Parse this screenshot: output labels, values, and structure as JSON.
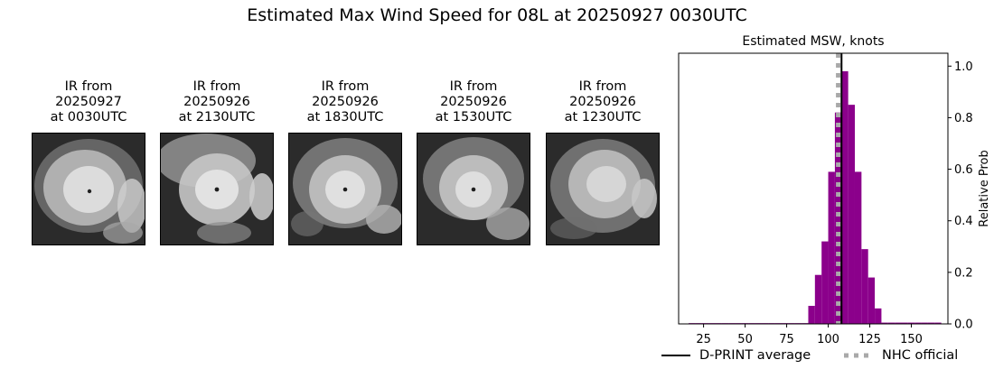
{
  "title": "Estimated Max Wind Speed for 08L at 20250927 0030UTC",
  "ir_panels": [
    {
      "line1": "IR from",
      "line2": "20250927",
      "line3": "at 0030UTC"
    },
    {
      "line1": "IR from",
      "line2": "20250926",
      "line3": "at 2130UTC"
    },
    {
      "line1": "IR from",
      "line2": "20250926",
      "line3": "at 1830UTC"
    },
    {
      "line1": "IR from",
      "line2": "20250926",
      "line3": "at 1530UTC"
    },
    {
      "line1": "IR from",
      "line2": "20250926",
      "line3": "at 1230UTC"
    }
  ],
  "legend": {
    "dprint_label": "D-PRINT average",
    "nhc_label": "NHC official"
  },
  "colors": {
    "bars": "#8b008b",
    "dprint_line": "#000000",
    "nhc_line": "#a9a9a9"
  },
  "chart_data": {
    "type": "bar",
    "title": "Estimated MSW, knots",
    "xlabel": "",
    "ylabel": "Relative Prob",
    "xlim": [
      10,
      172
    ],
    "ylim": [
      0,
      1.05
    ],
    "x_ticks": [
      25,
      50,
      75,
      100,
      125,
      150
    ],
    "y_ticks": [
      0.0,
      0.2,
      0.4,
      0.6,
      0.8,
      1.0
    ],
    "y_axis_side": "right",
    "bin_width": 4,
    "bins": [
      {
        "x": 18,
        "value": 0.003
      },
      {
        "x": 22,
        "value": 0.003
      },
      {
        "x": 26,
        "value": 0.003
      },
      {
        "x": 30,
        "value": 0.003
      },
      {
        "x": 34,
        "value": 0.003
      },
      {
        "x": 38,
        "value": 0.003
      },
      {
        "x": 42,
        "value": 0.003
      },
      {
        "x": 46,
        "value": 0.003
      },
      {
        "x": 50,
        "value": 0.003
      },
      {
        "x": 54,
        "value": 0.003
      },
      {
        "x": 58,
        "value": 0.003
      },
      {
        "x": 62,
        "value": 0.003
      },
      {
        "x": 66,
        "value": 0.003
      },
      {
        "x": 70,
        "value": 0.003
      },
      {
        "x": 74,
        "value": 0.003
      },
      {
        "x": 78,
        "value": 0.003
      },
      {
        "x": 82,
        "value": 0.003
      },
      {
        "x": 86,
        "value": 0.003
      },
      {
        "x": 90,
        "value": 0.07
      },
      {
        "x": 94,
        "value": 0.19
      },
      {
        "x": 98,
        "value": 0.32
      },
      {
        "x": 102,
        "value": 0.59
      },
      {
        "x": 106,
        "value": 0.82
      },
      {
        "x": 110,
        "value": 0.98
      },
      {
        "x": 114,
        "value": 0.85
      },
      {
        "x": 118,
        "value": 0.59
      },
      {
        "x": 122,
        "value": 0.29
      },
      {
        "x": 126,
        "value": 0.18
      },
      {
        "x": 130,
        "value": 0.06
      },
      {
        "x": 134,
        "value": 0.005
      },
      {
        "x": 138,
        "value": 0.005
      },
      {
        "x": 142,
        "value": 0.005
      },
      {
        "x": 146,
        "value": 0.005
      },
      {
        "x": 150,
        "value": 0.005
      },
      {
        "x": 154,
        "value": 0.005
      },
      {
        "x": 158,
        "value": 0.005
      },
      {
        "x": 162,
        "value": 0.005
      },
      {
        "x": 166,
        "value": 0.005
      }
    ],
    "series": [
      {
        "name": "D-PRINT average",
        "type": "vline",
        "x": 108
      },
      {
        "name": "NHC official",
        "type": "vline-dashed",
        "x": 106
      }
    ]
  }
}
